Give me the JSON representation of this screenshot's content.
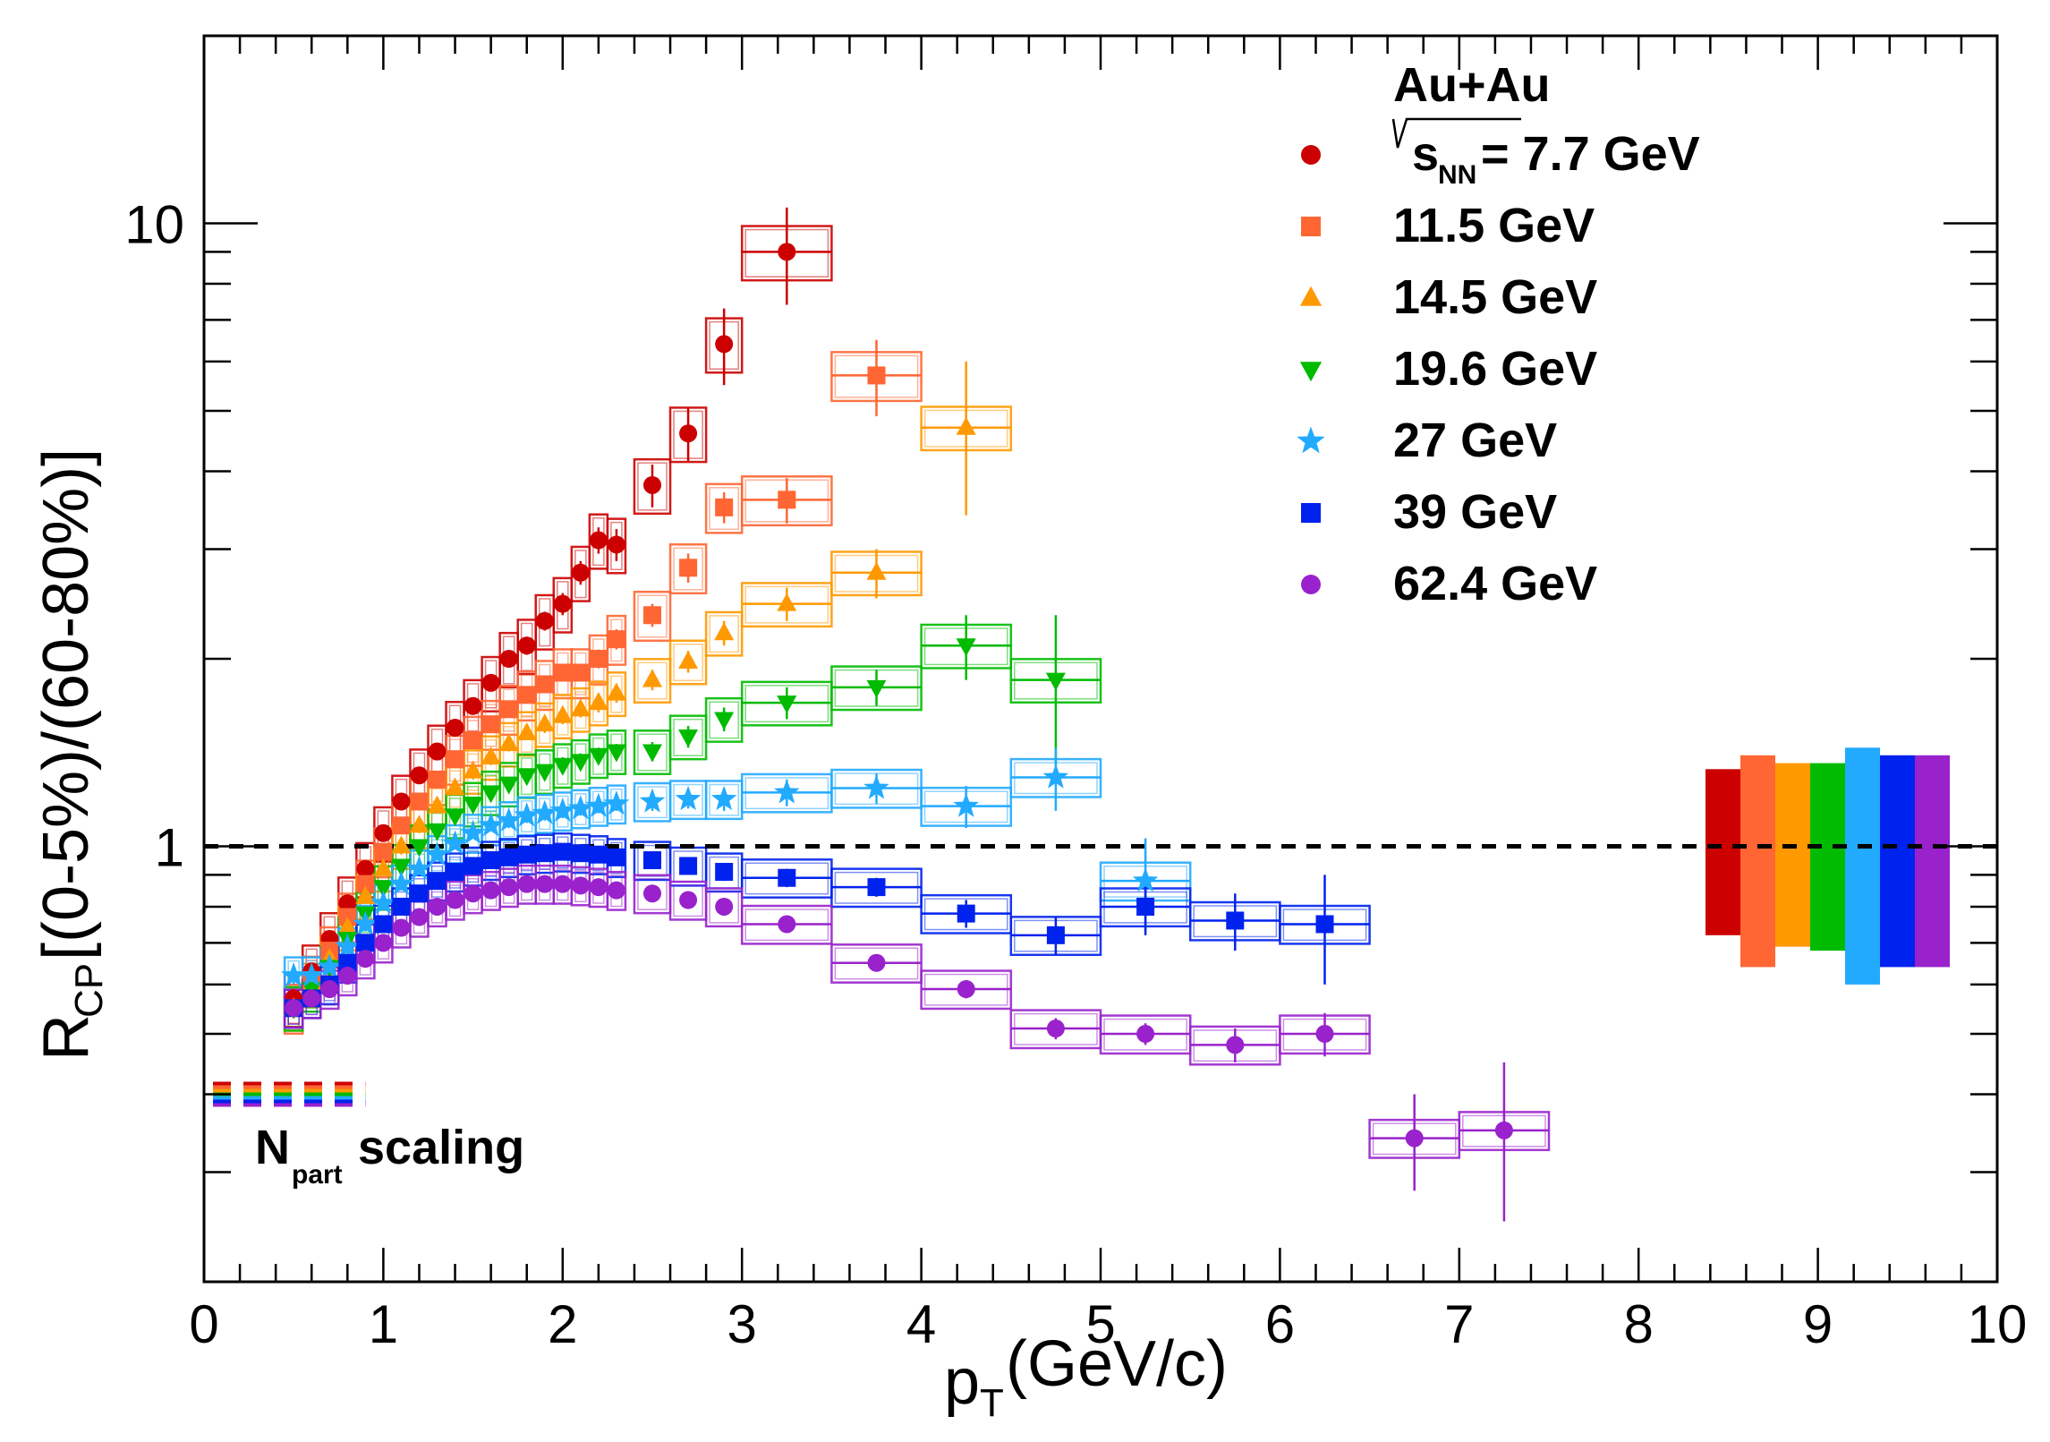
{
  "chart_data": {
    "type": "scatter",
    "xlabel": "p(GeV/c)",
    "xlabel_main": "p",
    "xlabel_sub": "T",
    "xlabel_rest": "(GeV/c)",
    "ylabel_main": "R",
    "ylabel_sub": "CP",
    "ylabel_rest": " [(0-5%)/(60-80%)]",
    "xlim": [
      0,
      10
    ],
    "ylim": [
      0.2,
      20
    ],
    "yscale": "log",
    "x_ticks": [
      "0",
      "1",
      "2",
      "3",
      "4",
      "5",
      "6",
      "7",
      "8",
      "9",
      "10"
    ],
    "y_ticks": [
      {
        "value": 1,
        "label": "1"
      },
      {
        "value": 10,
        "label": "10"
      }
    ],
    "reference_line": {
      "y": 1,
      "style": "dashed"
    },
    "legend": {
      "title": "Au+Au",
      "sqrt_s_label": {
        "prefix": "s",
        "sub": "NN",
        "suffix": " = 7.7 GeV"
      },
      "entries": [
        "7.7 GeV",
        "11.5 GeV",
        "14.5 GeV",
        "19.6 GeV",
        "27 GeV",
        "39 GeV",
        "62.4 GeV"
      ]
    },
    "npart_label": {
      "main": "N",
      "sub": "part",
      "rest": " scaling"
    },
    "npart_level": 0.4,
    "series": [
      {
        "name": "7.7 GeV",
        "marker": "circle",
        "color": "#cc0000",
        "x": [
          0.5,
          0.6,
          0.7,
          0.8,
          0.9,
          1.0,
          1.1,
          1.2,
          1.3,
          1.4,
          1.5,
          1.6,
          1.7,
          1.8,
          1.9,
          2.0,
          2.1,
          2.2,
          2.3,
          2.5,
          2.7,
          2.9,
          3.25
        ],
        "y": [
          0.57,
          0.63,
          0.71,
          0.81,
          0.92,
          1.05,
          1.18,
          1.3,
          1.42,
          1.55,
          1.68,
          1.83,
          2.0,
          2.1,
          2.3,
          2.45,
          2.75,
          3.1,
          3.05,
          3.8,
          4.6,
          6.4,
          9.0
        ],
        "ey": [
          0.02,
          0.02,
          0.02,
          0.02,
          0.03,
          0.03,
          0.03,
          0.04,
          0.04,
          0.05,
          0.05,
          0.05,
          0.06,
          0.07,
          0.08,
          0.1,
          0.12,
          0.15,
          0.18,
          0.3,
          0.45,
          0.9,
          1.6
        ],
        "bw": [
          0.05,
          0.05,
          0.05,
          0.05,
          0.05,
          0.05,
          0.05,
          0.05,
          0.05,
          0.05,
          0.05,
          0.05,
          0.05,
          0.05,
          0.05,
          0.05,
          0.05,
          0.05,
          0.05,
          0.1,
          0.1,
          0.1,
          0.25
        ],
        "sy": 0.1
      },
      {
        "name": "11.5 GeV",
        "marker": "square",
        "color": "#ff6633",
        "x": [
          0.5,
          0.6,
          0.7,
          0.8,
          0.9,
          1.0,
          1.1,
          1.2,
          1.3,
          1.4,
          1.5,
          1.6,
          1.7,
          1.8,
          1.9,
          2.0,
          2.1,
          2.2,
          2.3,
          2.5,
          2.7,
          2.9,
          3.25,
          3.75
        ],
        "y": [
          0.55,
          0.61,
          0.68,
          0.77,
          0.87,
          0.98,
          1.08,
          1.18,
          1.28,
          1.38,
          1.48,
          1.57,
          1.66,
          1.75,
          1.82,
          1.9,
          1.9,
          2.0,
          2.15,
          2.35,
          2.8,
          3.5,
          3.6,
          5.7
        ],
        "ey": [
          0.02,
          0.02,
          0.02,
          0.02,
          0.02,
          0.03,
          0.03,
          0.03,
          0.03,
          0.04,
          0.04,
          0.04,
          0.05,
          0.05,
          0.05,
          0.06,
          0.06,
          0.07,
          0.08,
          0.1,
          0.15,
          0.2,
          0.3,
          0.8
        ],
        "bw": [
          0.05,
          0.05,
          0.05,
          0.05,
          0.05,
          0.05,
          0.05,
          0.05,
          0.05,
          0.05,
          0.05,
          0.05,
          0.05,
          0.05,
          0.05,
          0.05,
          0.05,
          0.05,
          0.05,
          0.1,
          0.1,
          0.1,
          0.25,
          0.25
        ],
        "sy": 0.09
      },
      {
        "name": "14.5 GeV",
        "marker": "triangle",
        "color": "#ff9900",
        "x": [
          0.5,
          0.6,
          0.7,
          0.8,
          0.9,
          1.0,
          1.1,
          1.2,
          1.3,
          1.4,
          1.5,
          1.6,
          1.7,
          1.8,
          1.9,
          2.0,
          2.1,
          2.2,
          2.3,
          2.5,
          2.7,
          2.9,
          3.25,
          3.75,
          4.25
        ],
        "y": [
          0.55,
          0.6,
          0.66,
          0.74,
          0.83,
          0.92,
          1.0,
          1.08,
          1.16,
          1.24,
          1.32,
          1.39,
          1.46,
          1.52,
          1.57,
          1.62,
          1.66,
          1.7,
          1.76,
          1.85,
          1.98,
          2.2,
          2.45,
          2.75,
          4.7
        ],
        "ey": [
          0.02,
          0.02,
          0.02,
          0.02,
          0.02,
          0.02,
          0.03,
          0.03,
          0.03,
          0.03,
          0.04,
          0.04,
          0.04,
          0.04,
          0.05,
          0.05,
          0.05,
          0.06,
          0.06,
          0.07,
          0.08,
          0.1,
          0.15,
          0.25,
          1.3
        ],
        "bw": [
          0.05,
          0.05,
          0.05,
          0.05,
          0.05,
          0.05,
          0.05,
          0.05,
          0.05,
          0.05,
          0.05,
          0.05,
          0.05,
          0.05,
          0.05,
          0.05,
          0.05,
          0.05,
          0.05,
          0.1,
          0.1,
          0.1,
          0.25,
          0.25,
          0.25
        ],
        "sy": 0.08
      },
      {
        "name": "19.6 GeV",
        "marker": "triangle-down",
        "color": "#00bb00",
        "x": [
          0.5,
          0.6,
          0.7,
          0.8,
          0.9,
          1.0,
          1.1,
          1.2,
          1.3,
          1.4,
          1.5,
          1.6,
          1.7,
          1.8,
          1.9,
          2.0,
          2.1,
          2.2,
          2.3,
          2.5,
          2.7,
          2.9,
          3.25,
          3.75,
          4.25,
          4.75
        ],
        "y": [
          0.55,
          0.59,
          0.64,
          0.71,
          0.78,
          0.86,
          0.93,
          1.0,
          1.06,
          1.12,
          1.17,
          1.22,
          1.26,
          1.3,
          1.32,
          1.35,
          1.37,
          1.4,
          1.42,
          1.42,
          1.5,
          1.6,
          1.7,
          1.8,
          2.1,
          1.85
        ],
        "ey": [
          0.02,
          0.02,
          0.02,
          0.02,
          0.02,
          0.02,
          0.02,
          0.02,
          0.02,
          0.03,
          0.03,
          0.03,
          0.03,
          0.03,
          0.03,
          0.04,
          0.04,
          0.04,
          0.04,
          0.05,
          0.06,
          0.07,
          0.1,
          0.12,
          0.25,
          0.5
        ],
        "bw": [
          0.05,
          0.05,
          0.05,
          0.05,
          0.05,
          0.05,
          0.05,
          0.05,
          0.05,
          0.05,
          0.05,
          0.05,
          0.05,
          0.05,
          0.05,
          0.05,
          0.05,
          0.05,
          0.05,
          0.1,
          0.1,
          0.1,
          0.25,
          0.25,
          0.25,
          0.25
        ],
        "sy": 0.08
      },
      {
        "name": "27 GeV",
        "marker": "star",
        "color": "#22aaff",
        "x": [
          0.5,
          0.6,
          0.7,
          0.8,
          0.9,
          1.0,
          1.1,
          1.2,
          1.3,
          1.4,
          1.5,
          1.6,
          1.7,
          1.8,
          1.9,
          2.0,
          2.1,
          2.2,
          2.3,
          2.5,
          2.7,
          2.9,
          3.25,
          3.75,
          4.25,
          4.75,
          5.25
        ],
        "y": [
          0.62,
          0.62,
          0.64,
          0.69,
          0.75,
          0.81,
          0.87,
          0.92,
          0.97,
          1.01,
          1.05,
          1.08,
          1.1,
          1.12,
          1.13,
          1.14,
          1.15,
          1.16,
          1.17,
          1.18,
          1.19,
          1.19,
          1.22,
          1.24,
          1.16,
          1.29,
          0.88
        ],
        "ey": [
          0.02,
          0.02,
          0.02,
          0.02,
          0.02,
          0.02,
          0.02,
          0.02,
          0.02,
          0.02,
          0.02,
          0.02,
          0.03,
          0.03,
          0.03,
          0.03,
          0.03,
          0.03,
          0.03,
          0.04,
          0.04,
          0.05,
          0.06,
          0.07,
          0.09,
          0.15,
          0.15
        ],
        "bw": [
          0.05,
          0.05,
          0.05,
          0.05,
          0.05,
          0.05,
          0.05,
          0.05,
          0.05,
          0.05,
          0.05,
          0.05,
          0.05,
          0.05,
          0.05,
          0.05,
          0.05,
          0.05,
          0.05,
          0.1,
          0.1,
          0.1,
          0.25,
          0.25,
          0.25,
          0.25,
          0.25
        ],
        "sy": 0.07
      },
      {
        "name": "39 GeV",
        "marker": "square",
        "color": "#0022ee",
        "x": [
          0.5,
          0.6,
          0.7,
          0.8,
          0.9,
          1.0,
          1.1,
          1.2,
          1.3,
          1.4,
          1.5,
          1.6,
          1.7,
          1.8,
          1.9,
          2.0,
          2.1,
          2.2,
          2.3,
          2.5,
          2.7,
          2.9,
          3.25,
          3.75,
          4.25,
          4.75,
          5.25,
          5.75,
          6.25
        ],
        "y": [
          0.55,
          0.57,
          0.6,
          0.65,
          0.7,
          0.75,
          0.8,
          0.84,
          0.88,
          0.91,
          0.93,
          0.95,
          0.96,
          0.97,
          0.975,
          0.98,
          0.975,
          0.97,
          0.96,
          0.95,
          0.93,
          0.91,
          0.89,
          0.86,
          0.78,
          0.72,
          0.8,
          0.76,
          0.75
        ],
        "ey": [
          0.01,
          0.01,
          0.01,
          0.01,
          0.01,
          0.01,
          0.01,
          0.01,
          0.01,
          0.01,
          0.01,
          0.01,
          0.01,
          0.01,
          0.01,
          0.02,
          0.02,
          0.02,
          0.02,
          0.02,
          0.02,
          0.03,
          0.03,
          0.03,
          0.04,
          0.05,
          0.08,
          0.08,
          0.15
        ],
        "bw": [
          0.05,
          0.05,
          0.05,
          0.05,
          0.05,
          0.05,
          0.05,
          0.05,
          0.05,
          0.05,
          0.05,
          0.05,
          0.05,
          0.05,
          0.05,
          0.05,
          0.05,
          0.05,
          0.05,
          0.1,
          0.1,
          0.1,
          0.25,
          0.25,
          0.25,
          0.25,
          0.25,
          0.25,
          0.25
        ],
        "sy": 0.07
      },
      {
        "name": "62.4 GeV",
        "marker": "circle",
        "color": "#9922cc",
        "x": [
          0.5,
          0.6,
          0.7,
          0.8,
          0.9,
          1.0,
          1.1,
          1.2,
          1.3,
          1.4,
          1.5,
          1.6,
          1.7,
          1.8,
          1.9,
          2.0,
          2.1,
          2.2,
          2.3,
          2.5,
          2.7,
          2.9,
          3.25,
          3.75,
          4.25,
          4.75,
          5.25,
          5.75,
          6.25,
          6.75,
          7.25
        ],
        "y": [
          0.55,
          0.57,
          0.59,
          0.62,
          0.66,
          0.7,
          0.74,
          0.77,
          0.8,
          0.82,
          0.84,
          0.85,
          0.86,
          0.87,
          0.87,
          0.87,
          0.865,
          0.86,
          0.85,
          0.84,
          0.82,
          0.8,
          0.75,
          0.65,
          0.59,
          0.51,
          0.5,
          0.48,
          0.5,
          0.34,
          0.35
        ],
        "ey": [
          0.01,
          0.01,
          0.01,
          0.01,
          0.01,
          0.01,
          0.01,
          0.01,
          0.01,
          0.01,
          0.01,
          0.01,
          0.01,
          0.01,
          0.01,
          0.01,
          0.01,
          0.01,
          0.01,
          0.01,
          0.02,
          0.02,
          0.02,
          0.02,
          0.02,
          0.02,
          0.02,
          0.03,
          0.04,
          0.06,
          0.1
        ],
        "bw": [
          0.05,
          0.05,
          0.05,
          0.05,
          0.05,
          0.05,
          0.05,
          0.05,
          0.05,
          0.05,
          0.05,
          0.05,
          0.05,
          0.05,
          0.05,
          0.05,
          0.05,
          0.05,
          0.05,
          0.1,
          0.1,
          0.1,
          0.25,
          0.25,
          0.25,
          0.25,
          0.25,
          0.25,
          0.25,
          0.25,
          0.25
        ],
        "sy": 0.07
      }
    ],
    "normalization_bands": [
      {
        "name": "7.7 GeV",
        "color": "#cc0000",
        "low": 0.72,
        "high": 1.33
      },
      {
        "name": "11.5 GeV",
        "color": "#ff6633",
        "low": 0.64,
        "high": 1.4
      },
      {
        "name": "14.5 GeV",
        "color": "#ff9900",
        "low": 0.69,
        "high": 1.36
      },
      {
        "name": "19.6 GeV",
        "color": "#00bb00",
        "low": 0.68,
        "high": 1.36
      },
      {
        "name": "27 GeV",
        "color": "#22aaff",
        "low": 0.6,
        "high": 1.44
      },
      {
        "name": "39 GeV",
        "color": "#0022ee",
        "low": 0.64,
        "high": 1.4
      },
      {
        "name": "62.4 GeV",
        "color": "#9922cc",
        "low": 0.64,
        "high": 1.4
      }
    ]
  }
}
